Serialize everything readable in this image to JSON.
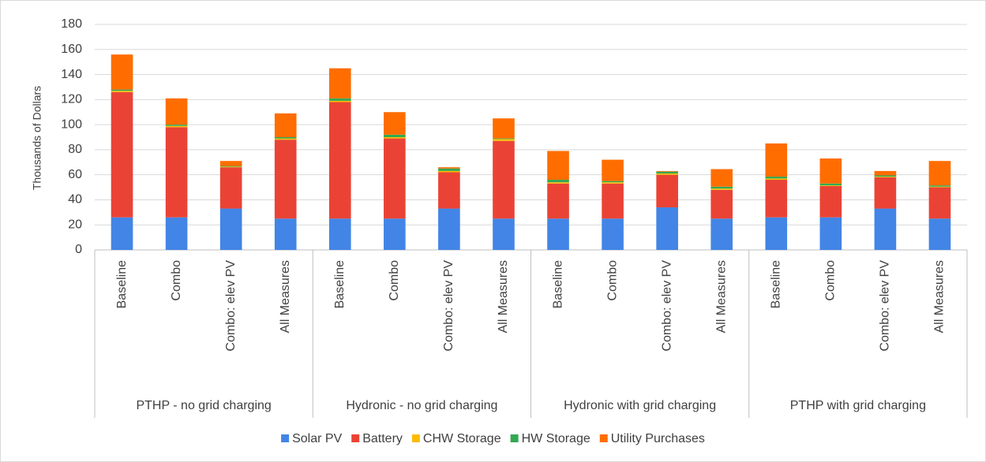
{
  "chart_data": {
    "type": "stacked_bar",
    "y_label": "Thousands of Dollars",
    "categories": [
      "Baseline",
      "Combo",
      "Combo: elev PV",
      "All Measures",
      "Baseline",
      "Combo",
      "Combo: elev PV",
      "All Measures",
      "Baseline",
      "Combo",
      "Combo: elev PV",
      "All Measures",
      "Baseline",
      "Combo",
      "Combo: elev PV",
      "All Measures"
    ],
    "groups": [
      "PTHP - no grid charging",
      "Hydronic - no grid charging",
      "Hydronic with grid charging",
      "PTHP with grid charging"
    ],
    "series": [
      {
        "name": "Solar PV",
        "color": "#4285e6",
        "values": [
          26,
          26,
          33,
          25,
          25,
          25,
          33,
          25,
          25,
          25,
          34,
          25,
          26,
          26,
          33,
          25
        ]
      },
      {
        "name": "Battery",
        "color": "#ea4335",
        "values": [
          100,
          72,
          33,
          63,
          93,
          64,
          29,
          62,
          28,
          28,
          26,
          23,
          30,
          25,
          25,
          25
        ]
      },
      {
        "name": "CHW Storage",
        "color": "#fbbc04",
        "values": [
          1,
          1,
          0.5,
          1,
          1,
          1,
          1,
          1.5,
          1,
          1,
          1,
          1,
          1,
          0.5,
          0.5,
          0.5
        ]
      },
      {
        "name": "HW Storage",
        "color": "#34a853",
        "values": [
          1,
          1,
          0.5,
          1,
          2,
          2,
          2,
          0.5,
          2,
          1,
          1.5,
          1.5,
          1.5,
          1.5,
          1,
          1
        ]
      },
      {
        "name": "Utility Purchases",
        "color": "#ff6d01",
        "values": [
          28,
          21,
          4,
          19,
          24,
          18,
          1,
          16,
          23,
          17,
          0.5,
          14,
          26.5,
          20,
          3.5,
          19.5
        ]
      }
    ],
    "ylim": [
      0,
      180
    ],
    "yticks": [
      0,
      20,
      40,
      60,
      80,
      100,
      120,
      140,
      160,
      180
    ],
    "grid": true,
    "legend": "bottom"
  }
}
